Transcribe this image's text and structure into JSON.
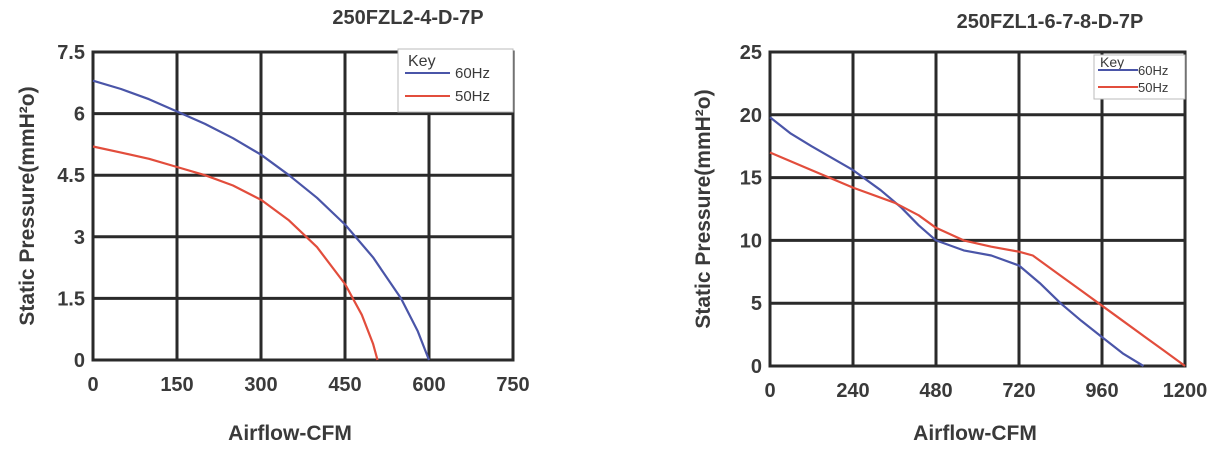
{
  "chart_data": [
    {
      "type": "line",
      "title": "250FZL2-4-D-7P",
      "xlabel": "Airflow-CFM",
      "ylabel": "Static Pressure(mmH²o)",
      "xlim": [
        0,
        750
      ],
      "ylim": [
        0,
        7.5
      ],
      "xticks": [
        "0",
        "150",
        "300",
        "450",
        "600",
        "750"
      ],
      "yticks": [
        "0",
        "1.5",
        "3",
        "4.5",
        "6",
        "7.5"
      ],
      "grid": true,
      "legend": {
        "title": "Key",
        "placement": "top-right"
      },
      "series": [
        {
          "name": "60Hz",
          "color": "#4a55a8",
          "points": [
            [
              0,
              6.8
            ],
            [
              50,
              6.6
            ],
            [
              100,
              6.35
            ],
            [
              150,
              6.05
            ],
            [
              200,
              5.75
            ],
            [
              250,
              5.4
            ],
            [
              300,
              5.0
            ],
            [
              350,
              4.5
            ],
            [
              400,
              3.95
            ],
            [
              450,
              3.3
            ],
            [
              500,
              2.5
            ],
            [
              550,
              1.5
            ],
            [
              580,
              0.7
            ],
            [
              600,
              0
            ]
          ]
        },
        {
          "name": "50Hz",
          "color": "#e24d3c",
          "points": [
            [
              0,
              5.2
            ],
            [
              50,
              5.05
            ],
            [
              100,
              4.9
            ],
            [
              150,
              4.7
            ],
            [
              200,
              4.5
            ],
            [
              250,
              4.25
            ],
            [
              300,
              3.9
            ],
            [
              350,
              3.4
            ],
            [
              400,
              2.75
            ],
            [
              450,
              1.85
            ],
            [
              480,
              1.1
            ],
            [
              500,
              0.4
            ],
            [
              508,
              0
            ]
          ]
        }
      ]
    },
    {
      "type": "line",
      "title": "250FZL1-6-7-8-D-7P",
      "xlabel": "Airflow-CFM",
      "ylabel": "Static Pressure(mmH²o)",
      "xlim": [
        0,
        1200
      ],
      "ylim": [
        0,
        25
      ],
      "xticks": [
        "0",
        "240",
        "480",
        "720",
        "960",
        "1200"
      ],
      "yticks": [
        "0",
        "5",
        "10",
        "15",
        "20",
        "25"
      ],
      "grid": true,
      "legend": {
        "title": "Key",
        "placement": "top-right"
      },
      "series": [
        {
          "name": "60Hz",
          "color": "#4a55a8",
          "points": [
            [
              0,
              19.8
            ],
            [
              60,
              18.5
            ],
            [
              120,
              17.5
            ],
            [
              240,
              15.6
            ],
            [
              320,
              14.0
            ],
            [
              380,
              12.6
            ],
            [
              430,
              11.2
            ],
            [
              480,
              10.0
            ],
            [
              560,
              9.2
            ],
            [
              640,
              8.8
            ],
            [
              720,
              8.0
            ],
            [
              780,
              6.6
            ],
            [
              840,
              5.0
            ],
            [
              900,
              3.6
            ],
            [
              960,
              2.3
            ],
            [
              1020,
              1.0
            ],
            [
              1080,
              0
            ]
          ]
        },
        {
          "name": "50Hz",
          "color": "#e24d3c",
          "points": [
            [
              0,
              17.0
            ],
            [
              120,
              15.6
            ],
            [
              240,
              14.2
            ],
            [
              360,
              13.0
            ],
            [
              430,
              12.0
            ],
            [
              480,
              11.0
            ],
            [
              560,
              10.0
            ],
            [
              640,
              9.5
            ],
            [
              720,
              9.1
            ],
            [
              760,
              8.8
            ],
            [
              840,
              7.2
            ],
            [
              900,
              6.0
            ],
            [
              960,
              4.8
            ],
            [
              1020,
              3.6
            ],
            [
              1080,
              2.4
            ],
            [
              1140,
              1.2
            ],
            [
              1200,
              0
            ]
          ]
        }
      ]
    }
  ]
}
